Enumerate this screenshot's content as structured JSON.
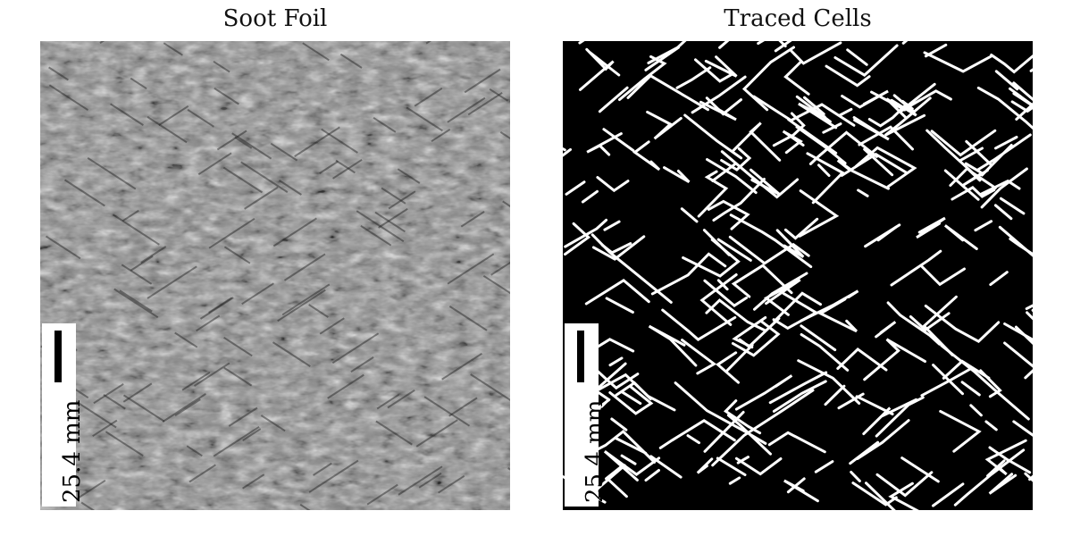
{
  "panels": [
    {
      "title": "Soot Foil",
      "scale_label": "25.4 mm"
    },
    {
      "title": "Traced Cells",
      "scale_label": "25.4 mm"
    }
  ],
  "colors": {
    "background": "#ffffff",
    "soot_gray": "#8a8a8a",
    "traced_background": "#000000",
    "traced_lines": "#ffffff"
  }
}
